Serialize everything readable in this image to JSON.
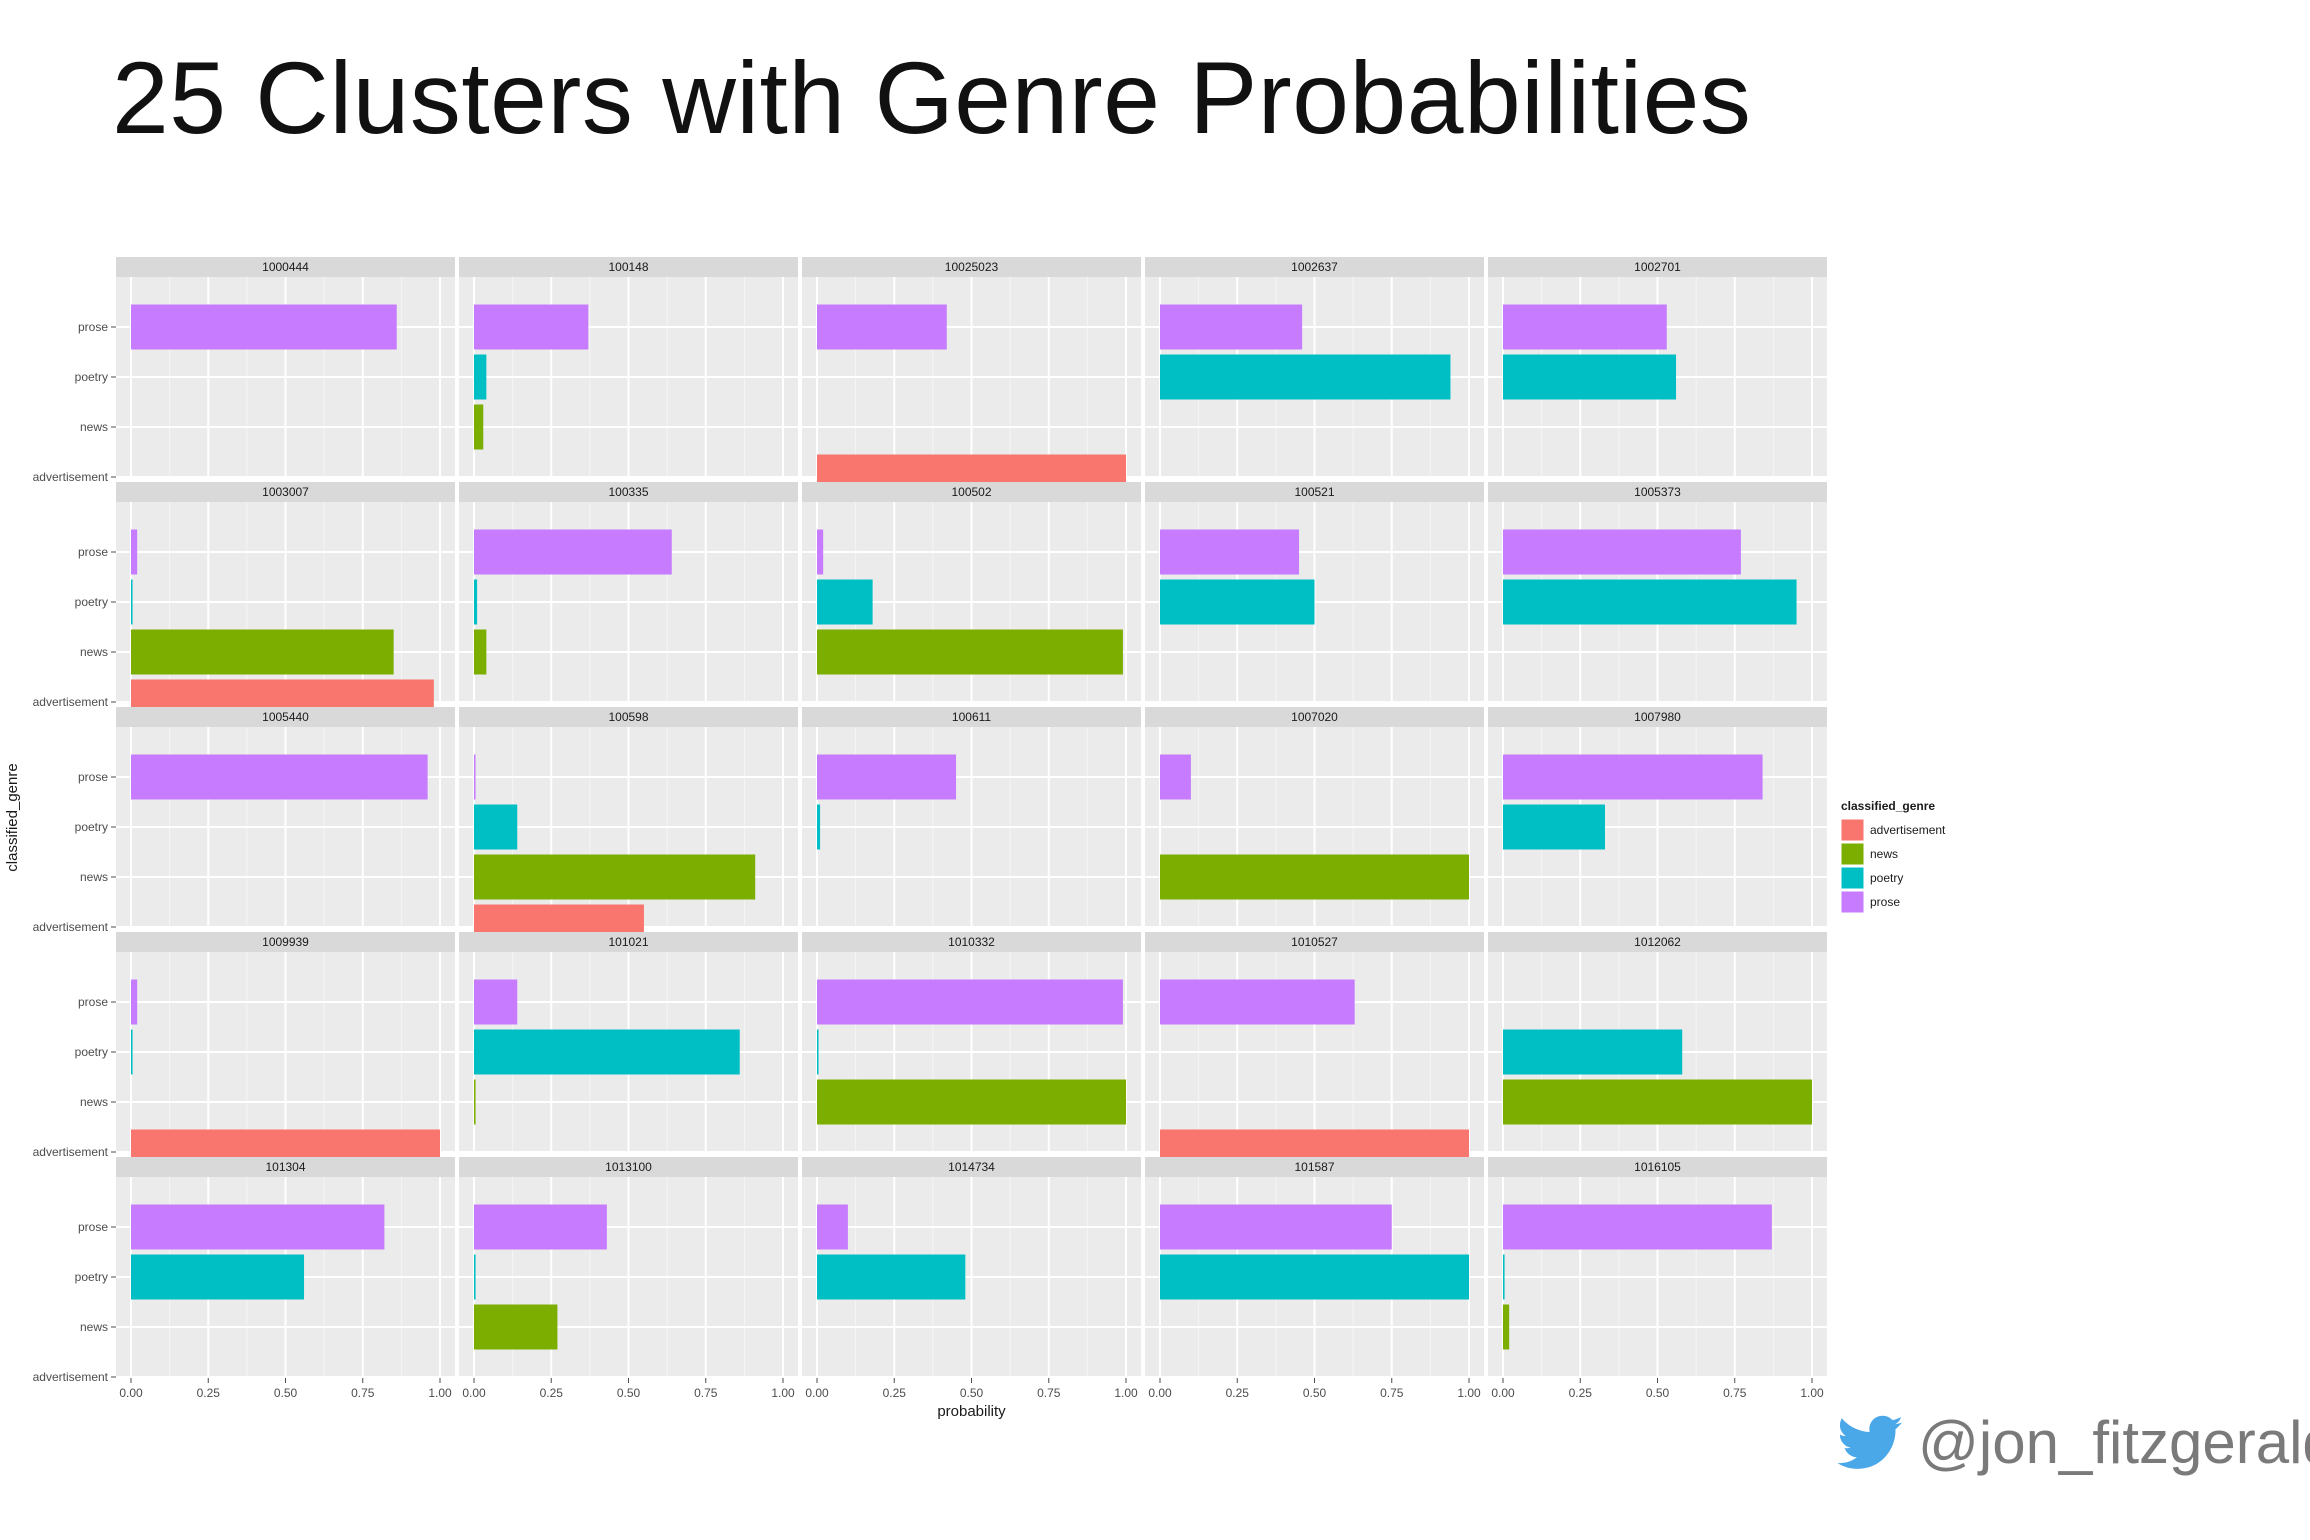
{
  "title": "25 Clusters with Genre Probabilities",
  "twitter": {
    "icon": "twitter-bird-icon",
    "handle": "@jon_fitzgerald",
    "color": "#4aa7e8"
  },
  "chart_data": {
    "type": "bar",
    "orientation": "horizontal",
    "facet_layout": "5x5",
    "xlabel": "probability",
    "ylabel": "classified_genre",
    "xlim": [
      0,
      1
    ],
    "x_ticks": [
      "0.00",
      "0.25",
      "0.50",
      "0.75",
      "1.00"
    ],
    "categories": [
      "prose",
      "poetry",
      "news",
      "advertisement"
    ],
    "legend": {
      "title": "classified_genre",
      "position": "right",
      "entries": [
        {
          "label": "advertisement",
          "color": "#f8766d"
        },
        {
          "label": "news",
          "color": "#7cae00"
        },
        {
          "label": "poetry",
          "color": "#00bfc4"
        },
        {
          "label": "prose",
          "color": "#c77cff"
        }
      ]
    },
    "panels": [
      {
        "id": "1000444",
        "values": {
          "prose": 0.86,
          "poetry": 0,
          "news": 0,
          "advertisement": 0
        }
      },
      {
        "id": "100148",
        "values": {
          "prose": 0.37,
          "poetry": 0.04,
          "news": 0.03,
          "advertisement": 0
        }
      },
      {
        "id": "10025023",
        "values": {
          "prose": 0.42,
          "poetry": 0,
          "news": 0,
          "advertisement": 1.0
        }
      },
      {
        "id": "1002637",
        "values": {
          "prose": 0.46,
          "poetry": 0.94,
          "news": 0,
          "advertisement": 0
        }
      },
      {
        "id": "1002701",
        "values": {
          "prose": 0.53,
          "poetry": 0.56,
          "news": 0,
          "advertisement": 0
        }
      },
      {
        "id": "1003007",
        "values": {
          "prose": 0.02,
          "poetry": 0.005,
          "news": 0.85,
          "advertisement": 0.98
        }
      },
      {
        "id": "100335",
        "values": {
          "prose": 0.64,
          "poetry": 0.01,
          "news": 0.04,
          "advertisement": 0
        }
      },
      {
        "id": "100502",
        "values": {
          "prose": 0.02,
          "poetry": 0.18,
          "news": 0.99,
          "advertisement": 0
        }
      },
      {
        "id": "100521",
        "values": {
          "prose": 0.45,
          "poetry": 0.5,
          "news": 0,
          "advertisement": 0
        }
      },
      {
        "id": "1005373",
        "values": {
          "prose": 0.77,
          "poetry": 0.95,
          "news": 0,
          "advertisement": 0
        }
      },
      {
        "id": "1005440",
        "values": {
          "prose": 0.96,
          "poetry": 0,
          "news": 0,
          "advertisement": 0
        }
      },
      {
        "id": "100598",
        "values": {
          "prose": 0.005,
          "poetry": 0.14,
          "news": 0.91,
          "advertisement": 0.55
        }
      },
      {
        "id": "100611",
        "values": {
          "prose": 0.45,
          "poetry": 0.01,
          "news": 0,
          "advertisement": 0
        }
      },
      {
        "id": "1007020",
        "values": {
          "prose": 0.1,
          "poetry": 0,
          "news": 1.0,
          "advertisement": 0
        }
      },
      {
        "id": "1007980",
        "values": {
          "prose": 0.84,
          "poetry": 0.33,
          "news": 0,
          "advertisement": 0
        }
      },
      {
        "id": "1009939",
        "values": {
          "prose": 0.02,
          "poetry": 0.005,
          "news": 0,
          "advertisement": 1.0
        }
      },
      {
        "id": "101021",
        "values": {
          "prose": 0.14,
          "poetry": 0.86,
          "news": 0.005,
          "advertisement": 0
        }
      },
      {
        "id": "1010332",
        "values": {
          "prose": 0.99,
          "poetry": 0.005,
          "news": 1.0,
          "advertisement": 0
        }
      },
      {
        "id": "1010527",
        "values": {
          "prose": 0.63,
          "poetry": 0,
          "news": 0,
          "advertisement": 1.0
        }
      },
      {
        "id": "1012062",
        "values": {
          "prose": 0,
          "poetry": 0.58,
          "news": 1.0,
          "advertisement": 0
        }
      },
      {
        "id": "101304",
        "values": {
          "prose": 0.82,
          "poetry": 0.56,
          "news": 0,
          "advertisement": 0
        }
      },
      {
        "id": "1013100",
        "values": {
          "prose": 0.43,
          "poetry": 0.005,
          "news": 0.27,
          "advertisement": 0
        }
      },
      {
        "id": "1014734",
        "values": {
          "prose": 0.1,
          "poetry": 0.48,
          "news": 0,
          "advertisement": 0
        }
      },
      {
        "id": "101587",
        "values": {
          "prose": 0.75,
          "poetry": 1.0,
          "news": 0,
          "advertisement": 0
        }
      },
      {
        "id": "1016105",
        "values": {
          "prose": 0.87,
          "poetry": 0.005,
          "news": 0.02,
          "advertisement": 0
        }
      }
    ]
  }
}
